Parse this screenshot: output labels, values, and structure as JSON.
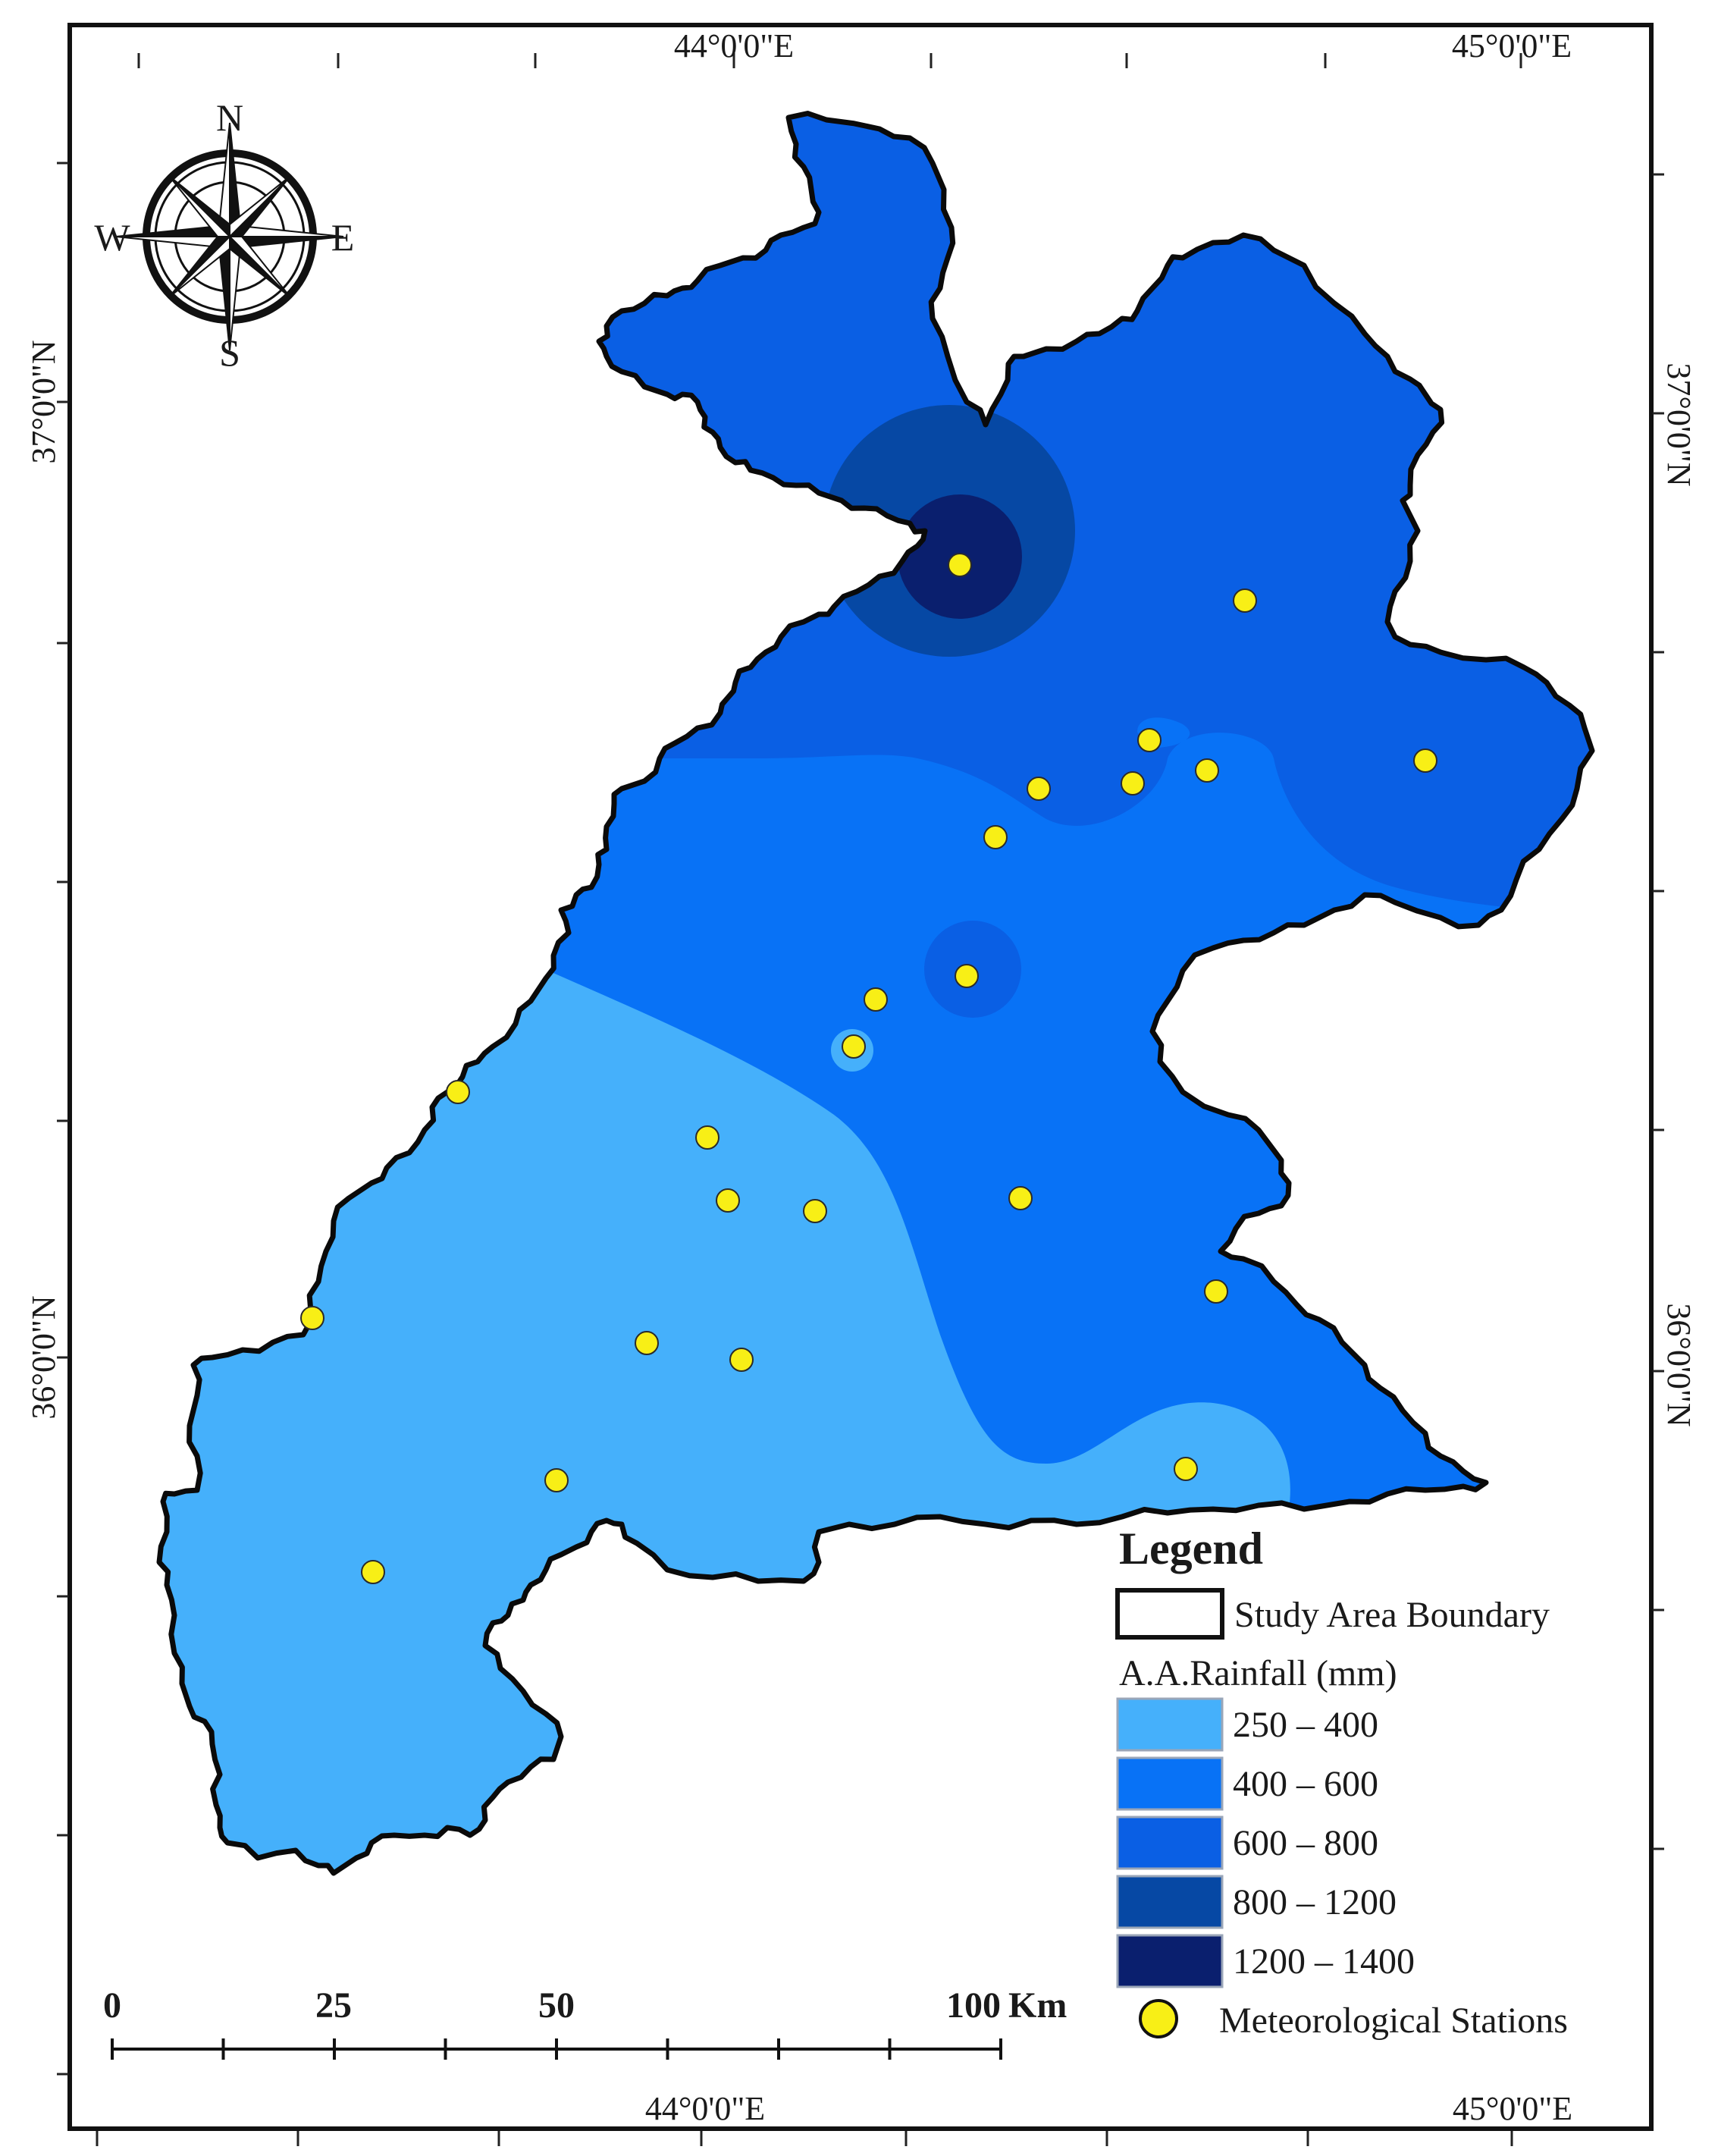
{
  "map": {
    "coordinates": {
      "top_left_lon": "44°0'0\"E",
      "top_right_lon": "45°0'0\"E",
      "bottom_left_lon": "44°0'0\"E",
      "bottom_right_lon": "45°0'0\"E",
      "left_top_lat": "37°0'0\"N",
      "left_bottom_lat": "36°0'0\"N",
      "right_top_lat": "37°0'0\"N",
      "right_bottom_lat": "36°0'0\"N"
    },
    "compass": {
      "n": "N",
      "s": "S",
      "e": "E",
      "w": "W",
      "icon": "compass-rose-icon"
    },
    "scale_bar": {
      "labels": [
        "0",
        "25",
        "50",
        "100"
      ],
      "unit": "Km"
    },
    "legend": {
      "title": "Legend",
      "boundary_label": "Study Area Boundary",
      "rainfall_title": "A.A.Rainfall (mm)",
      "classes": [
        {
          "label": "250 – 400",
          "color": "#45b0fb"
        },
        {
          "label": "400 – 600",
          "color": "#0872f6"
        },
        {
          "label": "600 – 800",
          "color": "#0a5fe4"
        },
        {
          "label": "800 – 1200",
          "color": "#0648a4"
        },
        {
          "label": "1200 – 1400",
          "color": "#0a1f6e"
        }
      ],
      "stations_label": "Meteorological Stations",
      "station_color": "#f8ef16"
    }
  }
}
